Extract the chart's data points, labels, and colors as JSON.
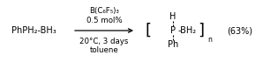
{
  "bg_color": "#ffffff",
  "reactant": "PhPH₂-BH₃",
  "catalyst_line1": "B(C₆F₅)₃",
  "catalyst_line2": "0.5 mol%",
  "conditions_line1": "20°C, 3 days",
  "conditions_line2": "toluene",
  "product_H": "H",
  "product_P": "P",
  "product_BH2": "-BH₂",
  "product_Ph": "Ph",
  "product_n": "n",
  "yield_text": "(63%)",
  "font_size_main": 7.0,
  "font_size_small": 6.2,
  "font_size_sub": 5.5,
  "font_size_bracket": 13
}
